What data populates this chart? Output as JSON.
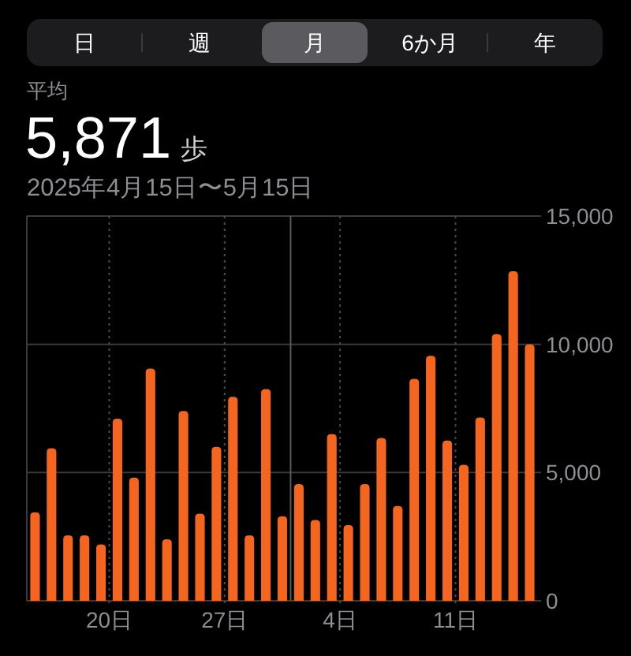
{
  "chart_data": {
    "type": "bar",
    "title": "平均",
    "subtitle": "2025年4月15日〜5月15日",
    "annotations": [
      "日",
      "週",
      "月",
      "6か月",
      "年",
      "5,871 歩"
    ],
    "x": [
      "2025-04-15T12:00",
      "2025-04-16T12:00",
      "2025-04-17T12:00",
      "2025-04-18T12:00",
      "2025-04-19T12:00",
      "2025-04-20T12:00",
      "2025-04-21T12:00",
      "2025-04-22T12:00",
      "2025-04-23T12:00",
      "2025-04-24T12:00",
      "2025-04-25T12:00",
      "2025-04-26T12:00",
      "2025-04-27T12:00",
      "2025-04-28T12:00",
      "2025-04-29T12:00",
      "2025-04-30T12:00",
      "2025-05-01T12:00",
      "2025-05-02T12:00",
      "2025-05-03T12:00",
      "2025-05-04T12:00",
      "2025-05-05T12:00",
      "2025-05-06T12:00",
      "2025-05-07T12:00",
      "2025-05-08T12:00",
      "2025-05-09T12:00",
      "2025-05-10T12:00",
      "2025-05-11T12:00",
      "2025-05-12T12:00",
      "2025-05-13T12:00",
      "2025-05-14T12:00",
      "2025-05-15T12:00"
    ],
    "values": [
      3450,
      5950,
      2550,
      2550,
      2200,
      7100,
      4800,
      9050,
      2400,
      7400,
      3400,
      6000,
      7950,
      2550,
      8250,
      3300,
      4550,
      3150,
      6500,
      2950,
      4550,
      6350,
      3700,
      8650,
      9550,
      6250,
      5300,
      7150,
      10400,
      12850,
      10000
    ],
    "color": "#f4661f",
    "xlim": [
      "2025-04-15",
      "2025-05-16"
    ],
    "xticks": [
      {
        "value": "2025-04-20",
        "label": "20日"
      },
      {
        "value": "2025-04-27",
        "label": "27日"
      },
      {
        "value": "2025-05-04",
        "label": "4日"
      },
      {
        "value": "2025-05-11",
        "label": "11日"
      }
    ],
    "ylim": [
      0,
      15000
    ],
    "yticks": [
      0,
      {
        "value": 5000,
        "label": "5,000"
      },
      {
        "value": 10000,
        "label": "10,000"
      },
      {
        "value": 15000,
        "label": "15,000"
      }
    ],
    "grid": true,
    "ref_lines": [
      {
        "axis": "x",
        "value": "2025-05-01",
        "line_style": "solid"
      }
    ]
  }
}
